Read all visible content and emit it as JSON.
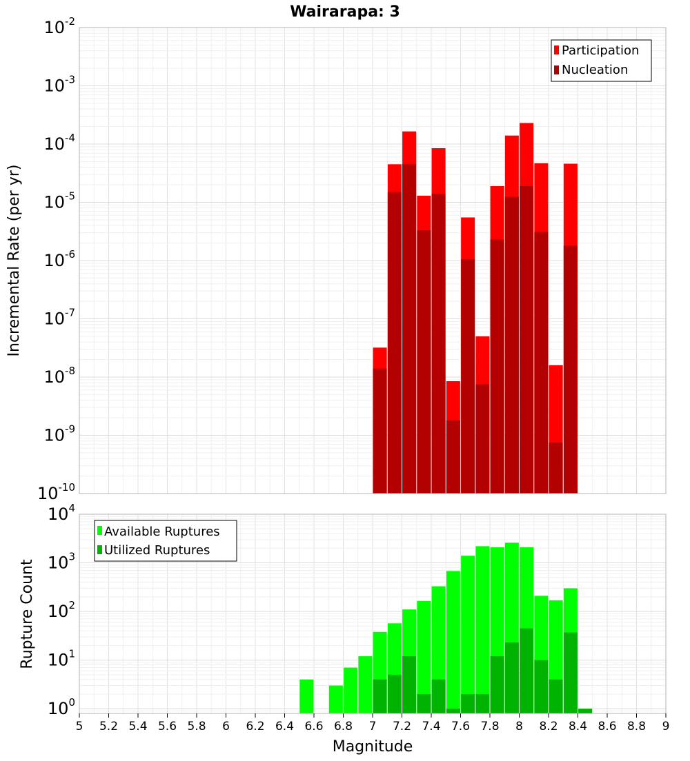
{
  "chart_data": [
    {
      "type": "bar",
      "title": "Wairarapa: 3",
      "xlabel": "",
      "ylabel": "Incremental Rate (per yr)",
      "yscale": "log",
      "ylim": [
        1e-10,
        0.01
      ],
      "xlim": [
        5,
        9
      ],
      "y_ticks": [
        {
          "base": "10",
          "exp": "-2"
        },
        {
          "base": "10",
          "exp": "-3"
        },
        {
          "base": "10",
          "exp": "-4"
        },
        {
          "base": "10",
          "exp": "-5"
        },
        {
          "base": "10",
          "exp": "-6"
        },
        {
          "base": "10",
          "exp": "-7"
        },
        {
          "base": "10",
          "exp": "-8"
        },
        {
          "base": "10",
          "exp": "-9"
        },
        {
          "base": "10",
          "exp": "-10"
        }
      ],
      "legend_position": "top-right",
      "grid": true,
      "x": [
        7.05,
        7.15,
        7.25,
        7.35,
        7.45,
        7.55,
        7.65,
        7.75,
        7.85,
        7.95,
        8.05,
        8.15,
        8.25,
        8.35
      ],
      "series": [
        {
          "name": "Participation",
          "color": "#ff0000",
          "values": [
            3.2e-08,
            4.5e-05,
            0.000165,
            1.3e-05,
            8.5e-05,
            8.5e-09,
            5.5e-06,
            5e-08,
            1.9e-05,
            0.00014,
            0.00023,
            4.7e-05,
            1.6e-08,
            4.6e-05
          ]
        },
        {
          "name": "Nucleation",
          "color": "#b30000",
          "values": [
            1.4e-08,
            1.5e-05,
            4.5e-05,
            3.3e-06,
            1.4e-05,
            1.8e-09,
            1.05e-06,
            7.5e-09,
            2.3e-06,
            1.25e-05,
            1.9e-05,
            3.1e-06,
            7.5e-10,
            1.8e-06
          ]
        }
      ]
    },
    {
      "type": "bar",
      "title": "",
      "xlabel": "Magnitude",
      "ylabel": "Rupture Count",
      "yscale": "log",
      "ylim": [
        0.8,
        10000
      ],
      "xlim": [
        5,
        9
      ],
      "x_ticks": [
        "5",
        "5.2",
        "5.4",
        "5.6",
        "5.8",
        "6",
        "6.2",
        "6.4",
        "6.6",
        "6.8",
        "7",
        "7.2",
        "7.4",
        "7.6",
        "7.8",
        "8",
        "8.2",
        "8.4",
        "8.6",
        "8.8",
        "9"
      ],
      "y_ticks": [
        {
          "base": "10",
          "exp": "4"
        },
        {
          "base": "10",
          "exp": "3"
        },
        {
          "base": "10",
          "exp": "2"
        },
        {
          "base": "10",
          "exp": "1"
        },
        {
          "base": "10",
          "exp": "0"
        }
      ],
      "legend_position": "top-left",
      "grid": true,
      "x": [
        6.55,
        6.75,
        6.85,
        6.95,
        7.05,
        7.15,
        7.25,
        7.35,
        7.45,
        7.55,
        7.65,
        7.75,
        7.85,
        7.95,
        8.05,
        8.15,
        8.25,
        8.35,
        8.45
      ],
      "series": [
        {
          "name": "Available Ruptures",
          "color": "#00ff00",
          "values": [
            4,
            3,
            7,
            12,
            38,
            57,
            110,
            165,
            330,
            680,
            1400,
            2200,
            2100,
            2600,
            2100,
            210,
            170,
            300,
            1
          ]
        },
        {
          "name": "Utilized Ruptures",
          "color": "#00b300",
          "values": [
            0,
            0,
            0,
            0,
            4,
            5,
            12,
            2,
            4,
            1,
            2,
            2,
            12,
            23,
            45,
            10,
            4,
            37,
            1
          ]
        }
      ]
    }
  ]
}
